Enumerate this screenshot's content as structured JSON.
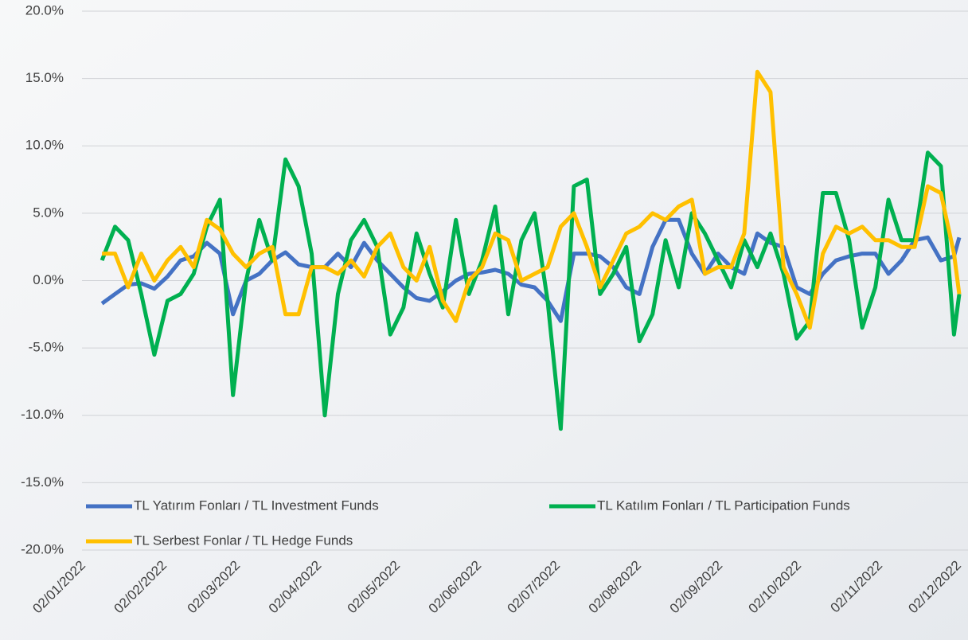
{
  "chart_data": {
    "type": "line",
    "x": [
      "09/01/2022",
      "14/01/2022",
      "19/01/2022",
      "24/01/2022",
      "29/01/2022",
      "03/02/2022",
      "08/02/2022",
      "13/02/2022",
      "18/02/2022",
      "23/02/2022",
      "28/02/2022",
      "05/03/2022",
      "10/03/2022",
      "15/03/2022",
      "20/03/2022",
      "25/03/2022",
      "30/03/2022",
      "04/04/2022",
      "09/04/2022",
      "14/04/2022",
      "19/04/2022",
      "24/04/2022",
      "29/04/2022",
      "04/05/2022",
      "09/05/2022",
      "14/05/2022",
      "19/05/2022",
      "24/05/2022",
      "29/05/2022",
      "03/06/2022",
      "08/06/2022",
      "13/06/2022",
      "18/06/2022",
      "23/06/2022",
      "28/06/2022",
      "03/07/2022",
      "08/07/2022",
      "13/07/2022",
      "18/07/2022",
      "23/07/2022",
      "28/07/2022",
      "02/08/2022",
      "07/08/2022",
      "12/08/2022",
      "17/08/2022",
      "22/08/2022",
      "27/08/2022",
      "01/09/2022",
      "06/09/2022",
      "11/09/2022",
      "16/09/2022",
      "21/09/2022",
      "26/09/2022",
      "01/10/2022",
      "06/10/2022",
      "11/10/2022",
      "16/10/2022",
      "21/10/2022",
      "26/10/2022",
      "31/10/2022",
      "05/11/2022",
      "10/11/2022",
      "15/11/2022",
      "20/11/2022",
      "25/11/2022",
      "30/11/2022",
      "02/12/2022"
    ],
    "series": [
      {
        "name": "TL Yatırım Fonları / TL Investment Funds",
        "color": "#4472c4",
        "values": [
          -1.7,
          -1.0,
          -0.3,
          -0.2,
          -0.6,
          0.3,
          1.5,
          1.8,
          2.8,
          2.0,
          -2.5,
          0.0,
          0.5,
          1.5,
          2.1,
          1.2,
          1.0,
          1.0,
          2.0,
          1.0,
          2.8,
          1.5,
          0.5,
          -0.5,
          -1.3,
          -1.5,
          -0.8,
          0.0,
          0.5,
          0.6,
          0.8,
          0.5,
          -0.3,
          -0.5,
          -1.5,
          -3.0,
          2.0,
          2.0,
          1.8,
          1.0,
          -0.5,
          -1.0,
          2.5,
          4.5,
          4.5,
          2.0,
          0.5,
          2.0,
          1.0,
          0.5,
          3.5,
          2.8,
          2.5,
          -0.5,
          -1.0,
          0.5,
          1.5,
          1.8,
          2.0,
          2.0,
          0.5,
          1.5,
          3.0,
          3.2,
          1.5,
          1.8,
          3.2
        ]
      },
      {
        "name": "TL Katılım Fonları / TL Participation Funds",
        "color": "#00b050",
        "values": [
          1.5,
          4.0,
          3.0,
          -1.0,
          -5.5,
          -1.5,
          -1.0,
          0.5,
          4.0,
          6.0,
          -8.5,
          0.0,
          4.5,
          1.5,
          9.0,
          7.0,
          2.0,
          -10.0,
          -1.0,
          3.0,
          4.5,
          2.5,
          -4.0,
          -2.0,
          3.5,
          0.5,
          -2.0,
          4.5,
          -1.0,
          1.5,
          5.5,
          -2.5,
          3.0,
          5.0,
          -1.5,
          -11.0,
          7.0,
          7.5,
          -1.0,
          0.5,
          2.5,
          -4.5,
          -2.5,
          3.0,
          -0.5,
          5.0,
          3.5,
          1.5,
          -0.5,
          3.0,
          1.0,
          3.5,
          0.5,
          -4.3,
          -3.0,
          6.5,
          6.5,
          3.0,
          -3.5,
          -0.5,
          6.0,
          3.0,
          3.0,
          9.5,
          8.5,
          -4.0,
          -1.0
        ]
      },
      {
        "name": "TL Serbest Fonlar / TL Hedge Funds",
        "color": "#ffc000",
        "values": [
          2.0,
          2.0,
          -0.5,
          2.0,
          0.0,
          1.5,
          2.5,
          1.0,
          4.5,
          3.8,
          2.0,
          1.0,
          2.0,
          2.5,
          -2.5,
          -2.5,
          1.0,
          1.0,
          0.5,
          1.5,
          0.3,
          2.5,
          3.5,
          1.0,
          0.0,
          2.5,
          -1.5,
          -3.0,
          0.0,
          1.0,
          3.5,
          3.0,
          0.0,
          0.5,
          1.0,
          4.0,
          5.0,
          2.5,
          -0.5,
          1.5,
          3.5,
          4.0,
          5.0,
          4.5,
          5.5,
          6.0,
          0.5,
          1.0,
          1.0,
          3.5,
          15.5,
          14.0,
          1.0,
          -1.0,
          -3.5,
          2.0,
          4.0,
          3.5,
          4.0,
          3.0,
          3.0,
          2.5,
          2.5,
          7.0,
          6.5,
          2.0,
          -1.0
        ]
      }
    ],
    "xlim": [
      "02/01/2022",
      "02/12/2022"
    ],
    "xticks": [
      "02/01/2022",
      "02/02/2022",
      "02/03/2022",
      "02/04/2022",
      "02/05/2022",
      "02/06/2022",
      "02/07/2022",
      "02/08/2022",
      "02/09/2022",
      "02/10/2022",
      "02/11/2022",
      "02/12/2022"
    ],
    "ylim": [
      -20,
      20
    ],
    "yticks": [
      {
        "value": -20,
        "label": "-20.0%"
      },
      {
        "value": -15,
        "label": "-15.0%"
      },
      {
        "value": -10,
        "label": "-10.0%"
      },
      {
        "value": -5,
        "label": "-5.0%"
      },
      {
        "value": 0,
        "label": "0.0%"
      },
      {
        "value": 5,
        "label": "5.0%"
      },
      {
        "value": 10,
        "label": "10.0%"
      },
      {
        "value": 15,
        "label": "15.0%"
      },
      {
        "value": 20,
        "label": "20.0%"
      }
    ],
    "grid": true,
    "legend": "bottom-inside"
  }
}
